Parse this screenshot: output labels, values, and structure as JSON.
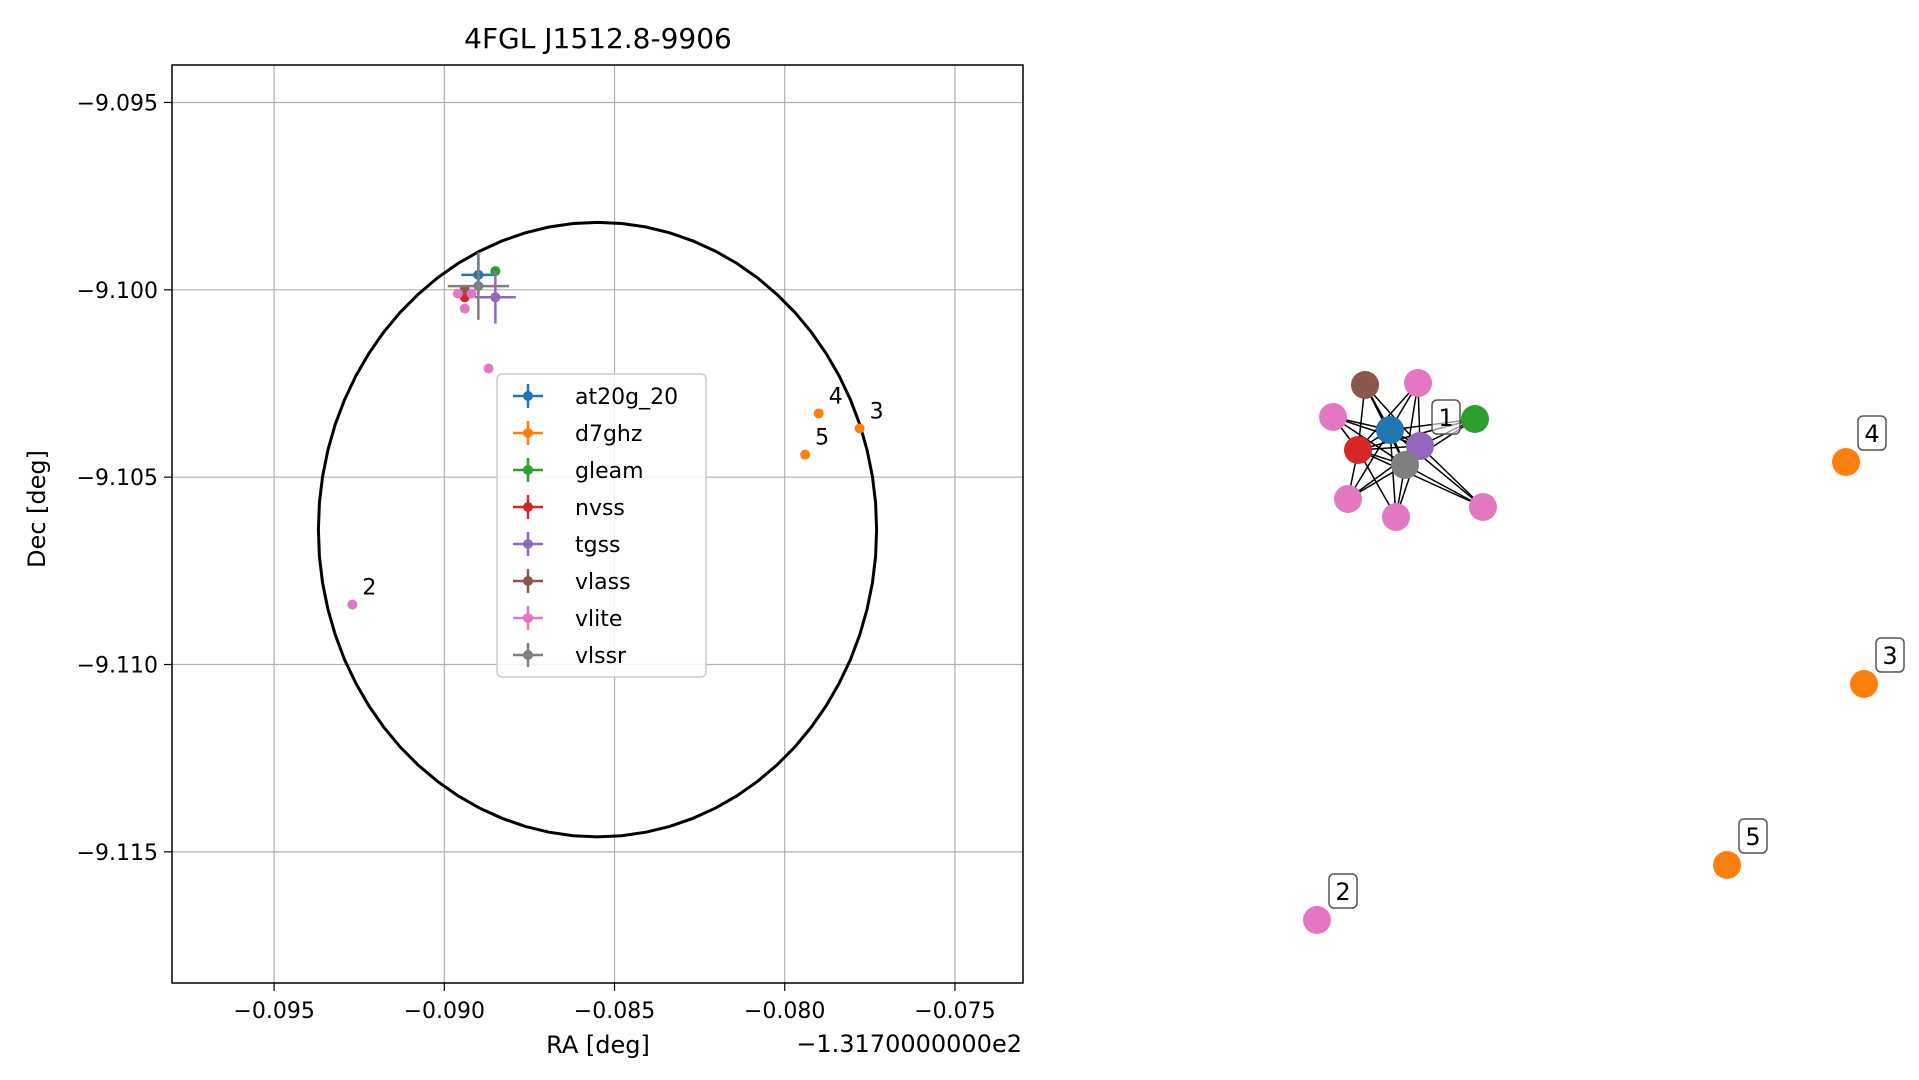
{
  "chart_data": [
    {
      "type": "scatter",
      "title": "4FGL J1512.8-9906",
      "xlabel": "RA [deg]",
      "ylabel": "Dec [deg]",
      "x_offset_label": "−1.3170000000e2",
      "xlim": [
        -0.098,
        -0.073
      ],
      "ylim": [
        -9.1185,
        -9.094
      ],
      "grid": true,
      "legend_position": "center",
      "x_ticks": [
        -0.095,
        -0.09,
        -0.085,
        -0.08,
        -0.075
      ],
      "x_tick_labels": [
        "−0.095",
        "−0.090",
        "−0.085",
        "−0.080",
        "−0.075"
      ],
      "y_ticks": [
        -9.095,
        -9.1,
        -9.105,
        -9.11,
        -9.115
      ],
      "y_tick_labels": [
        "−9.095",
        "−9.100",
        "−9.105",
        "−9.110",
        "−9.115"
      ],
      "ellipse": {
        "center": [
          -0.0855,
          -9.1064
        ],
        "rx": 0.0082,
        "ry": 0.0082,
        "color": "#000000"
      },
      "series": [
        {
          "name": "at20g_20",
          "color": "#1f77b4",
          "points": [
            {
              "x": -0.089,
              "y": -9.0996,
              "xerr": 0.0005,
              "yerr": 0.0005
            }
          ]
        },
        {
          "name": "d7ghz",
          "color": "#ff7f0e",
          "points": [
            {
              "x": -0.079,
              "y": -9.1033,
              "label": "4"
            },
            {
              "x": -0.0778,
              "y": -9.1037,
              "label": "3"
            },
            {
              "x": -0.0794,
              "y": -9.1044,
              "label": "5"
            }
          ]
        },
        {
          "name": "gleam",
          "color": "#2ca02c",
          "points": [
            {
              "x": -0.0885,
              "y": -9.0995
            }
          ]
        },
        {
          "name": "nvss",
          "color": "#d62728",
          "points": [
            {
              "x": -0.0894,
              "y": -9.1002,
              "xerr": 0.0001,
              "yerr": 0.0001
            }
          ]
        },
        {
          "name": "tgss",
          "color": "#9467bd",
          "points": [
            {
              "x": -0.0885,
              "y": -9.1002,
              "xerr": 0.0006,
              "yerr": 0.0007
            }
          ]
        },
        {
          "name": "vlass",
          "color": "#8c564b",
          "points": [
            {
              "x": -0.0894,
              "y": -9.1
            }
          ]
        },
        {
          "name": "vlite",
          "color": "#e377c2",
          "points": [
            {
              "x": -0.0896,
              "y": -9.1001
            },
            {
              "x": -0.0892,
              "y": -9.1001
            },
            {
              "x": -0.0894,
              "y": -9.1005
            },
            {
              "x": -0.0887,
              "y": -9.1021
            },
            {
              "x": -0.0927,
              "y": -9.1084,
              "label": "2"
            }
          ]
        },
        {
          "name": "vlssr",
          "color": "#7f7f7f",
          "points": [
            {
              "x": -0.089,
              "y": -9.0999,
              "xerr": 0.0009,
              "yerr": 0.0009
            }
          ]
        }
      ]
    },
    {
      "type": "network",
      "nodes": [
        {
          "id": "vlass",
          "color": "#8c564b",
          "label": ""
        },
        {
          "id": "vlite_a",
          "color": "#e377c2",
          "label": ""
        },
        {
          "id": "vlite_b",
          "color": "#e377c2",
          "label": ""
        },
        {
          "id": "at20g_20",
          "color": "#1f77b4",
          "label": ""
        },
        {
          "id": "tgss",
          "color": "#9467bd",
          "label": "1"
        },
        {
          "id": "gleam",
          "color": "#2ca02c",
          "label": ""
        },
        {
          "id": "nvss",
          "color": "#d62728",
          "label": ""
        },
        {
          "id": "vlssr",
          "color": "#7f7f7f",
          "label": ""
        },
        {
          "id": "vlite_c",
          "color": "#e377c2",
          "label": ""
        },
        {
          "id": "vlite_d",
          "color": "#e377c2",
          "label": ""
        },
        {
          "id": "vlite_e",
          "color": "#e377c2",
          "label": ""
        },
        {
          "id": "d7ghz_4",
          "color": "#ff7f0e",
          "label": "4"
        },
        {
          "id": "d7ghz_3",
          "color": "#ff7f0e",
          "label": "3"
        },
        {
          "id": "d7ghz_5",
          "color": "#ff7f0e",
          "label": "5"
        },
        {
          "id": "vlite_2",
          "color": "#e377c2",
          "label": "2"
        }
      ]
    }
  ]
}
